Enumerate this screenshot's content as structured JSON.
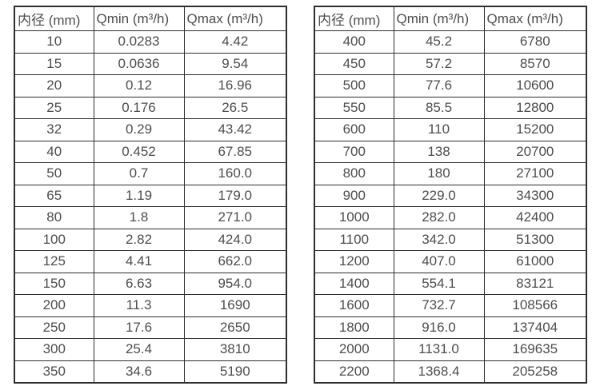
{
  "colors": {
    "border": "#2e2e2e",
    "text": "#4d4d4d",
    "background": "#ffffff"
  },
  "columns": [
    "内径 (mm)",
    "Qmin (m³/h)",
    "Qmax (m³/h)"
  ],
  "tables": {
    "left": {
      "rows": [
        [
          "10",
          "0.0283",
          "4.42"
        ],
        [
          "15",
          "0.0636",
          "9.54"
        ],
        [
          "20",
          "0.12",
          "16.96"
        ],
        [
          "25",
          "0.176",
          "26.5"
        ],
        [
          "32",
          "0.29",
          "43.42"
        ],
        [
          "40",
          "0.452",
          "67.85"
        ],
        [
          "50",
          "0.7",
          "160.0"
        ],
        [
          "65",
          "1.19",
          "179.0"
        ],
        [
          "80",
          "1.8",
          "271.0"
        ],
        [
          "100",
          "2.82",
          "424.0"
        ],
        [
          "125",
          "4.41",
          "662.0"
        ],
        [
          "150",
          "6.63",
          "954.0"
        ],
        [
          "200",
          "11.3",
          "1690"
        ],
        [
          "250",
          "17.6",
          "2650"
        ],
        [
          "300",
          "25.4",
          "3810"
        ],
        [
          "350",
          "34.6",
          "5190"
        ]
      ]
    },
    "right": {
      "rows": [
        [
          "400",
          "45.2",
          "6780"
        ],
        [
          "450",
          "57.2",
          "8570"
        ],
        [
          "500",
          "77.6",
          "10600"
        ],
        [
          "550",
          "85.5",
          "12800"
        ],
        [
          "600",
          "110",
          "15200"
        ],
        [
          "700",
          "138",
          "20700"
        ],
        [
          "800",
          "180",
          "27100"
        ],
        [
          "900",
          "229.0",
          "34300"
        ],
        [
          "1000",
          "282.0",
          "42400"
        ],
        [
          "1100",
          "342.0",
          "51300"
        ],
        [
          "1200",
          "407.0",
          "61000"
        ],
        [
          "1400",
          "554.1",
          "83121"
        ],
        [
          "1600",
          "732.7",
          "108566"
        ],
        [
          "1800",
          "916.0",
          "137404"
        ],
        [
          "2000",
          "1131.0",
          "169635"
        ],
        [
          "2200",
          "1368.4",
          "205258"
        ]
      ]
    }
  }
}
